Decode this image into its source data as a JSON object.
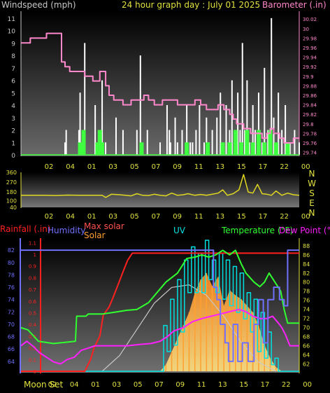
{
  "header": {
    "left_label": "Windspeed (mph)",
    "title": "24 hour graph day : July 01 2025",
    "right_label": "Barometer (.in)"
  },
  "time_labels": [
    "02",
    "04",
    "01",
    "03",
    "05",
    "07",
    "09",
    "11",
    "13",
    "15",
    "17",
    "22",
    "00"
  ],
  "bottom_labels": {
    "moon": "Moon Set",
    "times": [
      "02",
      "04",
      "01",
      "03",
      "05",
      "07",
      "09",
      "11",
      "13",
      "15",
      "17",
      "22",
      "00"
    ]
  },
  "compass": [
    "N",
    "W",
    "S",
    "E",
    "N"
  ],
  "colors": {
    "wind": "#d0d0d0",
    "gust": "#ffffff",
    "wind_green": "#40ff40",
    "barometer": "#ff88cc",
    "direction": "#e0d820",
    "rain": "#ff2020",
    "humidity": "#7070ff",
    "solar": "#ffa030",
    "max_solar": "#c8c8c8",
    "uv": "#00e0e0",
    "temperature": "#30ff30",
    "dewpoint": "#ff20ff",
    "axis_yellow": "#e0e040"
  },
  "legend": {
    "rainfall": "Rainfall (.in)",
    "humidity": "Humidity",
    "max_solar": "Max solar",
    "solar": "Solar",
    "uv": "UV",
    "temperature": "Temperature (°F)",
    "dewpoint": "Dew Point (°F)"
  },
  "chart_data": [
    {
      "type": "line",
      "title": "24 hour graph day : July 01 2025",
      "ylabel": "Windspeed (mph)",
      "y2label": "Barometer (.in)",
      "ylim": [
        0,
        11.5
      ],
      "y2lim": [
        29.735,
        30.035
      ],
      "yticks": [
        0,
        1,
        2,
        3,
        4,
        5,
        6,
        7,
        8,
        9,
        10,
        11
      ],
      "y2ticks": [
        29.74,
        29.76,
        29.78,
        29.8,
        29.82,
        29.84,
        29.86,
        29.88,
        29.9,
        29.92,
        29.94,
        29.96,
        29.98,
        30,
        30.02
      ],
      "y2ticklabels": [
        "29.74",
        "29.76",
        "29.78",
        "29.8",
        "29.82",
        "29.84",
        "29.86",
        "29.88",
        "29.9",
        "29.92",
        "29.94",
        "29.96",
        "29.98",
        "30",
        "30.02"
      ],
      "xticks": [
        "02",
        "04",
        "01",
        "03",
        "05",
        "07",
        "09",
        "11",
        "13",
        "15",
        "17",
        "22",
        "00"
      ],
      "series": [
        {
          "name": "Barometer",
          "x": [
            0,
            0.3,
            0.8,
            1.5,
            2.2,
            2.6,
            3.0,
            3.3,
            3.5,
            3.8,
            4.2,
            4.8,
            5.5,
            6.2,
            6.8,
            7.3,
            7.6,
            8.0,
            8.4,
            8.8,
            9.5,
            10.0,
            10.6,
            11.0,
            11.5,
            12.2,
            12.8,
            13.5,
            14.0,
            14.5,
            15.0,
            15.5,
            16.0,
            16.5,
            17.0,
            17.5,
            18.0,
            18.3,
            18.6,
            19.2,
            19.8,
            20.4,
            20.8,
            21.2,
            21.5,
            21.8,
            22.3,
            22.7,
            23.1,
            23.5,
            24.0
          ],
          "values": [
            29.97,
            29.97,
            29.98,
            29.98,
            29.99,
            29.99,
            29.99,
            29.99,
            29.93,
            29.92,
            29.91,
            29.91,
            29.9,
            29.89,
            29.91,
            29.88,
            29.86,
            29.85,
            29.85,
            29.84,
            29.85,
            29.85,
            29.86,
            29.85,
            29.84,
            29.85,
            29.85,
            29.84,
            29.84,
            29.84,
            29.85,
            29.84,
            29.83,
            29.83,
            29.84,
            29.83,
            29.82,
            29.81,
            29.8,
            29.79,
            29.78,
            29.78,
            29.77,
            29.78,
            29.79,
            29.78,
            29.77,
            29.76,
            29.76,
            29.77,
            29.77
          ]
        },
        {
          "name": "Wind gust",
          "x": [
            0,
            3.3,
            3.6,
            3.8,
            3.9,
            4.2,
            5.0,
            5.1,
            5.3,
            5.5,
            6.4,
            6.9,
            7.0,
            7.3,
            8.2,
            8.8,
            9.0,
            10.0,
            10.3,
            10.9,
            11.1,
            12.0,
            12.6,
            12.8,
            12.9,
            13.3,
            13.5,
            13.9,
            14.0,
            14.3,
            14.6,
            14.8,
            15.1,
            15.4,
            15.8,
            16.0,
            16.2,
            16.5,
            16.9,
            17.2,
            17.4,
            17.7,
            18.0,
            18.2,
            18.4,
            18.7,
            18.9,
            19.1,
            19.3,
            19.5,
            19.7,
            20.0,
            20.2,
            20.5,
            20.8,
            21.0,
            21.3,
            21.6,
            21.8,
            22.2,
            22.5,
            22.8,
            23.2,
            23.6,
            24.0
          ],
          "values": [
            0,
            0,
            0,
            1,
            2,
            0,
            2,
            5,
            1,
            9,
            4,
            2,
            6,
            1,
            3,
            2,
            0,
            2,
            8,
            2,
            0,
            1,
            4,
            2,
            1,
            3,
            1,
            2,
            0,
            4,
            1,
            1,
            2,
            4,
            1,
            3,
            1,
            2,
            3,
            5,
            1,
            4,
            2,
            6,
            1,
            5,
            2,
            9,
            2,
            6,
            1,
            4,
            2,
            5,
            1,
            7,
            2,
            11,
            3,
            5,
            2,
            4,
            1,
            2,
            1
          ]
        },
        {
          "name": "Wind speed",
          "x": [
            0,
            3.8,
            5.1,
            5.4,
            6.6,
            6.8,
            7.0,
            8.0,
            9.0,
            10.0,
            10.4,
            11.0,
            12.0,
            12.7,
            13.2,
            13.8,
            14.3,
            14.9,
            15.5,
            16.1,
            16.8,
            17.4,
            18.0,
            18.5,
            19.0,
            19.5,
            20.0,
            20.5,
            21.0,
            21.5,
            22.0,
            22.5,
            23.0,
            23.5,
            24.0
          ],
          "values": [
            0,
            0,
            1,
            2,
            1,
            2,
            1,
            0,
            0,
            0,
            1,
            0,
            0,
            0,
            0,
            0,
            1,
            0,
            0,
            1,
            0,
            1,
            1,
            2,
            1,
            2,
            1,
            2,
            1,
            2,
            1,
            0,
            1,
            0,
            0
          ]
        }
      ]
    },
    {
      "type": "line",
      "title": "",
      "ylabel": "Wind direction",
      "ylim": [
        40,
        360
      ],
      "yticks": [
        40,
        100,
        180,
        270,
        360
      ],
      "yticklabels": [
        "40",
        "100",
        "180",
        "270",
        "360"
      ],
      "xticks": [
        "02",
        "04",
        "01",
        "03",
        "05",
        "07",
        "09",
        "11",
        "13",
        "15",
        "17",
        "22",
        "00"
      ],
      "series": [
        {
          "name": "Direction",
          "x": [
            0,
            1,
            2,
            3,
            4,
            5,
            6,
            7,
            7.3,
            7.8,
            8.5,
            9,
            9.5,
            10,
            10.5,
            11,
            11.5,
            12,
            12.5,
            13,
            13.5,
            14,
            14.4,
            15,
            15.5,
            16,
            16.5,
            17,
            17.4,
            17.8,
            18.3,
            18.8,
            19.2,
            19.6,
            20,
            20.4,
            20.8,
            21.2,
            21.6,
            22,
            22.5,
            23,
            23.5,
            24
          ],
          "values": [
            150,
            150,
            150,
            148,
            152,
            150,
            150,
            150,
            130,
            160,
            155,
            150,
            145,
            165,
            150,
            148,
            160,
            150,
            145,
            170,
            150,
            155,
            165,
            150,
            158,
            150,
            160,
            170,
            200,
            150,
            165,
            200,
            340,
            180,
            170,
            250,
            165,
            160,
            150,
            190,
            150,
            170,
            155,
            150
          ]
        }
      ]
    },
    {
      "type": "line",
      "title": "",
      "ylabel": "Humidity",
      "y2label": "Temperature (°F)",
      "ylim": [
        62.4,
        83.6
      ],
      "y2lim": [
        60.4,
        89.2
      ],
      "rain_lim": [
        0,
        1.12
      ],
      "yticks": [
        64,
        66,
        68,
        70,
        72,
        74,
        76,
        78,
        80,
        82
      ],
      "yticklabels": [
        "64",
        "66",
        "68",
        "70",
        "72",
        "74",
        "76",
        "78",
        "80",
        "82"
      ],
      "rain_ticks": [
        0,
        0.1,
        0.2,
        0.3,
        0.4,
        0.5,
        0.6,
        0.7,
        0.8,
        0.9,
        1,
        1.1
      ],
      "rain_ticklabels": [
        "0",
        "0.1",
        "0.2",
        "0.3",
        "0.4",
        "0.5",
        "0.6",
        "0.7",
        "0.8",
        "0.9",
        "1",
        "1.1"
      ],
      "y2ticks": [
        62,
        64,
        66,
        68,
        70,
        72,
        74,
        76,
        78,
        80,
        82,
        84,
        86,
        88
      ],
      "y2ticklabels": [
        "62",
        "64",
        "66",
        "68",
        "70",
        "72",
        "74",
        "76",
        "78",
        "80",
        "82",
        "84",
        "86",
        "88"
      ],
      "xticks": [
        "02",
        "04",
        "01",
        "03",
        "05",
        "07",
        "09",
        "11",
        "13",
        "15",
        "17",
        "22",
        "00"
      ],
      "series": [
        {
          "name": "Rainfall (.in)",
          "x": [
            0,
            5.5,
            5.6,
            6.0,
            6.3,
            6.8,
            7.1,
            7.6,
            7.9,
            8.3,
            8.8,
            9.2,
            9.6,
            24.0
          ],
          "values": [
            0,
            0,
            0.02,
            0.1,
            0.2,
            0.3,
            0.48,
            0.55,
            0.62,
            0.72,
            0.85,
            0.95,
            1.01,
            1.01
          ]
        },
        {
          "name": "Humidity",
          "x": [
            0,
            16.3,
            16.6,
            16.9,
            17.2,
            17.6,
            17.9,
            18.3,
            18.7,
            19.1,
            19.6,
            20.1,
            20.5,
            20.9,
            21.3,
            21.8,
            22.3,
            22.7,
            23.0,
            23.0,
            23.7,
            24.0
          ],
          "values": [
            82,
            82,
            76,
            74,
            70,
            67,
            64,
            70,
            64,
            67,
            64,
            70,
            74,
            67,
            74,
            76,
            74,
            73,
            82,
            82,
            82,
            82
          ]
        },
        {
          "name": "Temperature (°F)",
          "x": [
            0,
            0.6,
            1.5,
            2.8,
            4.0,
            4.7,
            4.8,
            5.6,
            5.8,
            7.0,
            7.6,
            8.4,
            9.1,
            10.0,
            11.0,
            12.5,
            13.5,
            14.3,
            15.0,
            15.6,
            16.2,
            16.8,
            17.4,
            18.0,
            18.5,
            19.0,
            19.4,
            20.1,
            20.6,
            21.0,
            21.4,
            21.9,
            22.4,
            22.7,
            23.0,
            23.5,
            24.0
          ],
          "values": [
            70,
            69.5,
            67,
            66.5,
            66.8,
            67,
            72.5,
            72.5,
            73,
            73,
            73.2,
            73.5,
            73.8,
            74,
            75.5,
            80,
            82,
            85.2,
            85.5,
            86,
            85.5,
            86,
            87,
            86,
            87,
            84,
            82,
            80,
            79,
            80,
            82,
            80,
            78,
            74,
            71,
            71,
            71
          ]
        },
        {
          "name": "Dew Point (°F)",
          "x": [
            0,
            0.5,
            1.0,
            1.6,
            2.2,
            2.8,
            3.4,
            4.0,
            4.6,
            5.2,
            5.8,
            6.4,
            7.2,
            8.2,
            9.2,
            10.2,
            11.2,
            12.0,
            12.6,
            13.2,
            14.0,
            14.8,
            15.6,
            16.4,
            17.2,
            18.0,
            18.8,
            19.4,
            20.0,
            20.6,
            21.2,
            21.7,
            22.2,
            22.5,
            22.8,
            23.2,
            24.0
          ],
          "values": [
            66,
            67,
            66,
            64.5,
            63.5,
            62.5,
            62,
            63,
            63.5,
            65,
            65.5,
            66,
            66,
            66,
            66,
            66.3,
            66.5,
            67,
            68,
            69.3,
            70,
            71.3,
            72,
            72.5,
            73,
            73.5,
            74,
            73.5,
            72.5,
            72,
            72,
            72.5,
            71,
            70,
            68.5,
            66,
            66
          ]
        },
        {
          "name": "UV",
          "x": [
            0,
            12.0,
            12.3,
            12.6,
            12.9,
            13.2,
            13.5,
            13.8,
            14.1,
            14.4,
            14.7,
            15.0,
            15.3,
            15.6,
            15.9,
            16.2,
            16.5,
            16.8,
            17.1,
            17.4,
            17.7,
            18.0,
            18.3,
            18.6,
            18.9,
            19.2,
            19.5,
            19.8,
            20.1,
            20.4,
            20.7,
            21.0,
            21.3,
            21.6,
            21.9,
            22.2,
            22.5,
            24.0
          ],
          "values": [
            0,
            0,
            0.35,
            0.15,
            0.55,
            0.2,
            0.7,
            0.3,
            0.85,
            0.6,
            0.95,
            0.6,
            0.9,
            0.6,
            1.0,
            0.7,
            0.85,
            0.6,
            0.9,
            0.55,
            0.85,
            0.5,
            0.8,
            0.45,
            0.75,
            0.4,
            0.6,
            0.3,
            0.55,
            0.15,
            0.45,
            0.1,
            0.3,
            0.05,
            0.1,
            0,
            0,
            0
          ]
        },
        {
          "name": "Solar",
          "x": [
            0,
            12.0,
            12.5,
            13.0,
            13.5,
            14.0,
            14.5,
            15.0,
            15.5,
            16.0,
            16.5,
            17.0,
            17.5,
            18.0,
            18.5,
            19.0,
            19.5,
            20.0,
            20.5,
            21.0,
            21.5,
            22.0,
            22.5,
            24.0
          ],
          "values": [
            0,
            0,
            0.05,
            0.15,
            0.25,
            0.35,
            0.45,
            0.6,
            0.7,
            0.75,
            0.65,
            0.72,
            0.5,
            0.62,
            0.58,
            0.55,
            0.5,
            0.45,
            0.35,
            0.2,
            0.1,
            0.03,
            0,
            0
          ]
        },
        {
          "name": "Max solar",
          "x": [
            7.0,
            8.5,
            10,
            11.5,
            13,
            14.5,
            16,
            17.5,
            19,
            20.5,
            22.0
          ],
          "values": [
            0,
            0.12,
            0.32,
            0.52,
            0.64,
            0.66,
            0.58,
            0.42,
            0.22,
            0.07,
            0
          ]
        }
      ]
    }
  ]
}
